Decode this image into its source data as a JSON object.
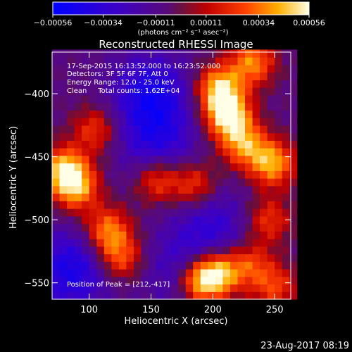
{
  "chart_data": {
    "type": "heatmap",
    "title": "Reconstructed RHESSI Image",
    "xlabel": "Heliocentric X (arcsec)",
    "ylabel": "Heliocentric Y (arcsec)",
    "xlim": [
      70,
      263
    ],
    "ylim": [
      -563,
      -367
    ],
    "x_ticks": [
      100,
      150,
      200,
      250
    ],
    "x_tick_labels": [
      "100",
      "150",
      "200",
      "250"
    ],
    "y_ticks": [
      -400,
      -450,
      -500,
      -550
    ],
    "y_tick_labels": [
      "−400",
      "−450",
      "−500",
      "−550"
    ],
    "colorbar": {
      "range": [
        -0.00056,
        0.00056
      ],
      "ticks": [
        -0.00056,
        -0.00034,
        -0.00011,
        0.00011,
        0.00034,
        0.00056
      ],
      "tick_labels": [
        "−0.00056",
        "−0.00034",
        "−0.00011",
        "0.00011",
        "0.00034",
        "0.00056"
      ],
      "unit_label": "(photons cm⁻² s⁻¹ asec⁻²)",
      "colormap": "blue-purple-red-yellow-white"
    },
    "annotations": {
      "time_range": "17-Sep-2015 16:13:52.000 to 16:23:52.000",
      "detectors": "Detectors: 3F 5F 6F 7F, Att 0",
      "energy": "Energy Range: 12.0 - 25.0 keV",
      "clean": "Clean     Total counts: 1.62E+04",
      "peak": "Position of Peak = [212,-417]"
    },
    "peak_position": [
      212,
      -417
    ],
    "bright_sources": [
      {
        "x": 212,
        "y": -417,
        "intensity": 1.0
      },
      {
        "x": 205,
        "y": -395,
        "intensity": 0.85
      },
      {
        "x": 232,
        "y": -375,
        "intensity": 0.7
      },
      {
        "x": 248,
        "y": -455,
        "intensity": 0.8
      },
      {
        "x": 225,
        "y": -440,
        "intensity": 0.7
      },
      {
        "x": 80,
        "y": -460,
        "intensity": 0.85
      },
      {
        "x": 90,
        "y": -475,
        "intensity": 0.7
      },
      {
        "x": 105,
        "y": -428,
        "intensity": 0.5
      },
      {
        "x": 115,
        "y": -508,
        "intensity": 0.7
      },
      {
        "x": 125,
        "y": -530,
        "intensity": 0.6
      },
      {
        "x": 155,
        "y": -468,
        "intensity": 0.6
      },
      {
        "x": 185,
        "y": -472,
        "intensity": 0.55
      },
      {
        "x": 245,
        "y": -500,
        "intensity": 0.5
      },
      {
        "x": 190,
        "y": -548,
        "intensity": 0.9
      },
      {
        "x": 205,
        "y": -542,
        "intensity": 0.8
      },
      {
        "x": 230,
        "y": -535,
        "intensity": 0.5
      },
      {
        "x": 250,
        "y": -553,
        "intensity": 0.5
      }
    ],
    "dark_regions": [
      {
        "x": 150,
        "y": -400,
        "intensity": -0.6
      },
      {
        "x": 155,
        "y": -440,
        "intensity": -0.45
      },
      {
        "x": 85,
        "y": -540,
        "intensity": -0.6
      },
      {
        "x": 175,
        "y": -540,
        "intensity": -0.35
      },
      {
        "x": 200,
        "y": -505,
        "intensity": -0.4
      }
    ]
  },
  "footer": {
    "timestamp": "23-Aug-2017 08:19"
  }
}
